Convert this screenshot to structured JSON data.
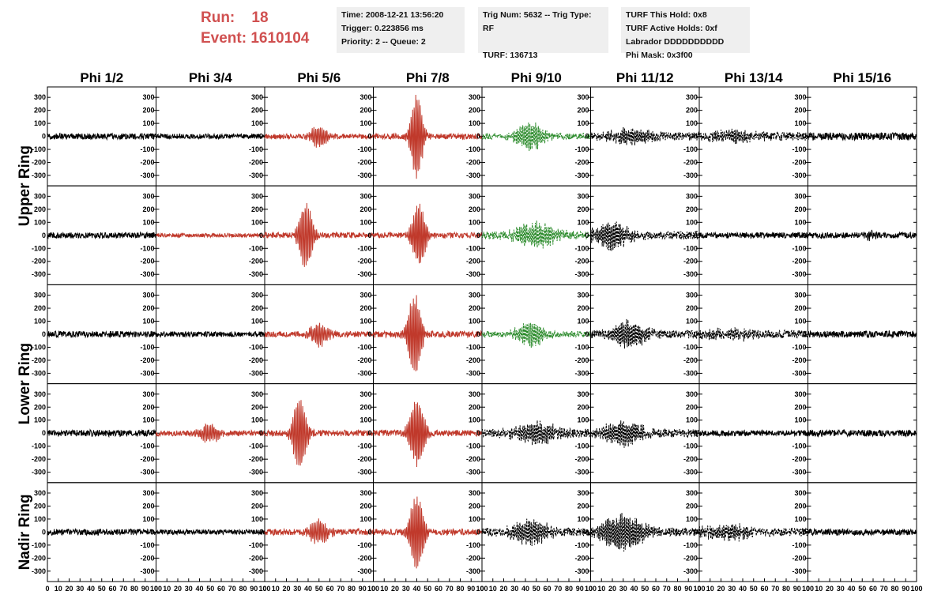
{
  "header": {
    "run_label": "Run:",
    "run_value": "18",
    "event_label": "Event:",
    "event_value": "1610104"
  },
  "info_box_1": {
    "time": "Time: 2008-12-21 13:56:20",
    "trigger": "Trigger: 0.223856 ms",
    "priority": "Priority: 2 -- Queue: 2"
  },
  "info_box_2": {
    "trig": "Trig Num: 5632 -- Trig Type: RF",
    "turf": "TURF: 136713"
  },
  "info_box_3": {
    "hold": "TURF This Hold: 0x8",
    "active": "TURF Active Holds: 0xf",
    "labrador": "Labrador DDDDDDDDDD",
    "phimask": "Phi Mask: 0x3f00"
  },
  "colors": {
    "background": "#ffffff",
    "run_text": "#d05050",
    "info_box": "#efefef",
    "trace_default": "#000000",
    "trace_triggered": "#c0392b",
    "trace_masked": "#2a8a2a"
  },
  "chart_data": {
    "type": "line",
    "columns": [
      "Phi 1/2",
      "Phi 3/4",
      "Phi 5/6",
      "Phi 7/8",
      "Phi 9/10",
      "Phi 11/12",
      "Phi 13/14",
      "Phi 15/16"
    ],
    "ring_labels": [
      "Upper Ring",
      "Lower Ring",
      "Nadir Ring"
    ],
    "rows": 5,
    "ylim": [
      -380,
      380
    ],
    "yticks": [
      300,
      200,
      100,
      0,
      -100,
      -200,
      -300
    ],
    "ytick_labels": [
      "300",
      "200",
      "100",
      "0",
      "-100",
      "-200",
      "-300"
    ],
    "xlim": [
      0,
      100
    ],
    "xticks": [
      0,
      10,
      20,
      30,
      40,
      50,
      60,
      70,
      80,
      90,
      100
    ],
    "xtick_labels": [
      "0",
      "10",
      "20",
      "30",
      "40",
      "50",
      "60",
      "70",
      "80",
      "90",
      "100"
    ],
    "panels": [
      [
        {
          "style": "black",
          "noise": 15,
          "amp": 0,
          "center": 50,
          "width": 10,
          "freq": 1.2
        },
        {
          "style": "black",
          "noise": 12,
          "amp": 0,
          "center": 50,
          "width": 10,
          "freq": 1.2
        },
        {
          "style": "red",
          "noise": 12,
          "amp": 75,
          "center": 50,
          "width": 9,
          "freq": 1.3
        },
        {
          "style": "red",
          "noise": 14,
          "amp": 330,
          "center": 40,
          "width": 6,
          "freq": 1.4
        },
        {
          "style": "green",
          "noise": 15,
          "amp": 95,
          "center": 45,
          "width": 14,
          "freq": 1.5
        },
        {
          "style": "dashed",
          "noise": 20,
          "amp": 50,
          "center": 35,
          "width": 20,
          "freq": 1.6
        },
        {
          "style": "dashed",
          "noise": 20,
          "amp": 35,
          "center": 30,
          "width": 25,
          "freq": 1.6
        },
        {
          "style": "black",
          "noise": 18,
          "amp": 0,
          "center": 50,
          "width": 10,
          "freq": 1.2
        }
      ],
      [
        {
          "style": "black",
          "noise": 14,
          "amp": 0,
          "center": 50,
          "width": 10,
          "freq": 1.2
        },
        {
          "style": "red",
          "noise": 10,
          "amp": 0,
          "center": 50,
          "width": 10,
          "freq": 1.2
        },
        {
          "style": "red",
          "noise": 14,
          "amp": 250,
          "center": 38,
          "width": 7,
          "freq": 1.3
        },
        {
          "style": "red",
          "noise": 14,
          "amp": 230,
          "center": 42,
          "width": 7,
          "freq": 1.4
        },
        {
          "style": "green",
          "noise": 20,
          "amp": 85,
          "center": 50,
          "width": 20,
          "freq": 1.5
        },
        {
          "style": "dashed",
          "noise": 20,
          "amp": 95,
          "center": 20,
          "width": 18,
          "freq": 1.6
        },
        {
          "style": "black",
          "noise": 14,
          "amp": 0,
          "center": 50,
          "width": 10,
          "freq": 1.2
        },
        {
          "style": "black",
          "noise": 14,
          "amp": 25,
          "center": 58,
          "width": 8,
          "freq": 1.3
        }
      ],
      [
        {
          "style": "black",
          "noise": 15,
          "amp": 0,
          "center": 50,
          "width": 10,
          "freq": 1.2
        },
        {
          "style": "black",
          "noise": 13,
          "amp": 0,
          "center": 50,
          "width": 10,
          "freq": 1.2
        },
        {
          "style": "red",
          "noise": 14,
          "amp": 85,
          "center": 50,
          "width": 9,
          "freq": 1.3
        },
        {
          "style": "red",
          "noise": 15,
          "amp": 300,
          "center": 38,
          "width": 7,
          "freq": 1.4
        },
        {
          "style": "green",
          "noise": 14,
          "amp": 95,
          "center": 45,
          "width": 14,
          "freq": 1.5
        },
        {
          "style": "dashed",
          "noise": 20,
          "amp": 90,
          "center": 35,
          "width": 18,
          "freq": 1.6
        },
        {
          "style": "dashed",
          "noise": 20,
          "amp": 30,
          "center": 30,
          "width": 25,
          "freq": 1.6
        },
        {
          "style": "black",
          "noise": 16,
          "amp": 0,
          "center": 50,
          "width": 10,
          "freq": 1.2
        }
      ],
      [
        {
          "style": "black",
          "noise": 16,
          "amp": 0,
          "center": 50,
          "width": 10,
          "freq": 1.2
        },
        {
          "style": "red",
          "noise": 14,
          "amp": 65,
          "center": 50,
          "width": 10,
          "freq": 1.3
        },
        {
          "style": "red",
          "noise": 15,
          "amp": 280,
          "center": 32,
          "width": 7,
          "freq": 1.3
        },
        {
          "style": "red",
          "noise": 15,
          "amp": 250,
          "center": 40,
          "width": 8,
          "freq": 1.4
        },
        {
          "style": "dashed",
          "noise": 20,
          "amp": 70,
          "center": 50,
          "width": 22,
          "freq": 1.5
        },
        {
          "style": "dashed",
          "noise": 20,
          "amp": 85,
          "center": 30,
          "width": 20,
          "freq": 1.6
        },
        {
          "style": "black",
          "noise": 14,
          "amp": 0,
          "center": 50,
          "width": 10,
          "freq": 1.2
        },
        {
          "style": "black",
          "noise": 16,
          "amp": 0,
          "center": 50,
          "width": 10,
          "freq": 1.2
        }
      ],
      [
        {
          "style": "black",
          "noise": 15,
          "amp": 0,
          "center": 50,
          "width": 10,
          "freq": 1.2
        },
        {
          "style": "black",
          "noise": 12,
          "amp": 0,
          "center": 50,
          "width": 10,
          "freq": 1.2
        },
        {
          "style": "red",
          "noise": 15,
          "amp": 85,
          "center": 50,
          "width": 10,
          "freq": 1.3
        },
        {
          "style": "red",
          "noise": 15,
          "amp": 290,
          "center": 40,
          "width": 7,
          "freq": 1.4
        },
        {
          "style": "dashed",
          "noise": 20,
          "amp": 90,
          "center": 45,
          "width": 18,
          "freq": 1.5
        },
        {
          "style": "dashed",
          "noise": 20,
          "amp": 120,
          "center": 30,
          "width": 22,
          "freq": 1.6
        },
        {
          "style": "dashed",
          "noise": 20,
          "amp": 50,
          "center": 25,
          "width": 25,
          "freq": 1.6
        },
        {
          "style": "black",
          "noise": 15,
          "amp": 0,
          "center": 50,
          "width": 10,
          "freq": 1.2
        }
      ]
    ]
  }
}
